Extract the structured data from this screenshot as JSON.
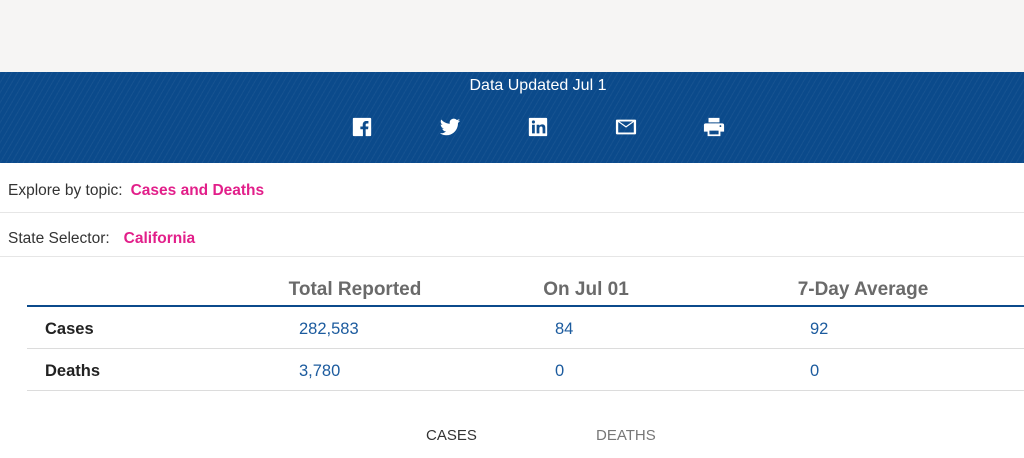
{
  "banner": {
    "updated": "Data Updated Jul 1",
    "share_icons": [
      "facebook-icon",
      "twitter-icon",
      "linkedin-icon",
      "email-icon",
      "print-icon"
    ]
  },
  "filters": {
    "explore_label": "Explore by topic:",
    "explore_value": "Cases and Deaths",
    "state_label": "State Selector:",
    "state_value": "California"
  },
  "table": {
    "columns": [
      "Total Reported",
      "On Jul 01",
      "7-Day Average"
    ],
    "rows": [
      {
        "label": "Cases",
        "total": "282,583",
        "on_date": "84",
        "avg": "92"
      },
      {
        "label": "Deaths",
        "total": "3,780",
        "on_date": "0",
        "avg": "0"
      }
    ]
  },
  "tabs": [
    {
      "label": "CASES",
      "active": true
    },
    {
      "label": "DEATHS",
      "active": false
    }
  ],
  "colors": {
    "banner_bg": "#0b4a8b",
    "link": "#e21f8a",
    "value": "#1c5b9e"
  }
}
